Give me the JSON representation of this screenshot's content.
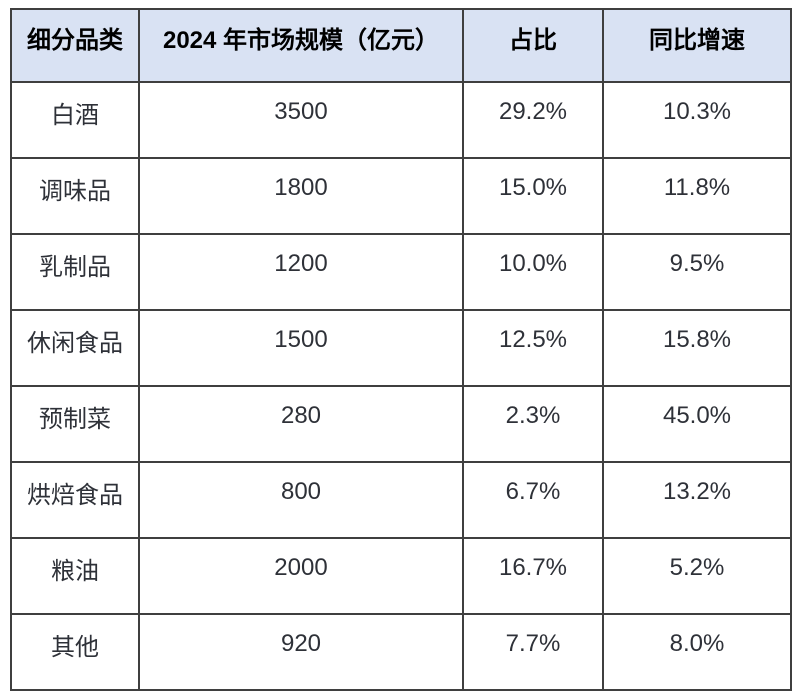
{
  "colors": {
    "header_bg": "#d9e2f3",
    "header_text": "#000000",
    "body_text": "#2e3138",
    "border": "#3f3f3f"
  },
  "table": {
    "columns": {
      "category": "细分品类",
      "market_size": "2024 年市场规模（亿元）",
      "share": "占比",
      "yoy_growth": "同比增速"
    },
    "rows": [
      {
        "category": "白酒",
        "market_size": "3500",
        "share": "29.2%",
        "yoy_growth": "10.3%"
      },
      {
        "category": "调味品",
        "market_size": "1800",
        "share": "15.0%",
        "yoy_growth": "11.8%"
      },
      {
        "category": "乳制品",
        "market_size": "1200",
        "share": "10.0%",
        "yoy_growth": "9.5%"
      },
      {
        "category": "休闲食品",
        "market_size": "1500",
        "share": "12.5%",
        "yoy_growth": "15.8%"
      },
      {
        "category": "预制菜",
        "market_size": "280",
        "share": "2.3%",
        "yoy_growth": "45.0%"
      },
      {
        "category": "烘焙食品",
        "market_size": "800",
        "share": "6.7%",
        "yoy_growth": "13.2%"
      },
      {
        "category": "粮油",
        "market_size": "2000",
        "share": "16.7%",
        "yoy_growth": "5.2%"
      },
      {
        "category": "其他",
        "market_size": "920",
        "share": "7.7%",
        "yoy_growth": "8.0%"
      }
    ]
  }
}
